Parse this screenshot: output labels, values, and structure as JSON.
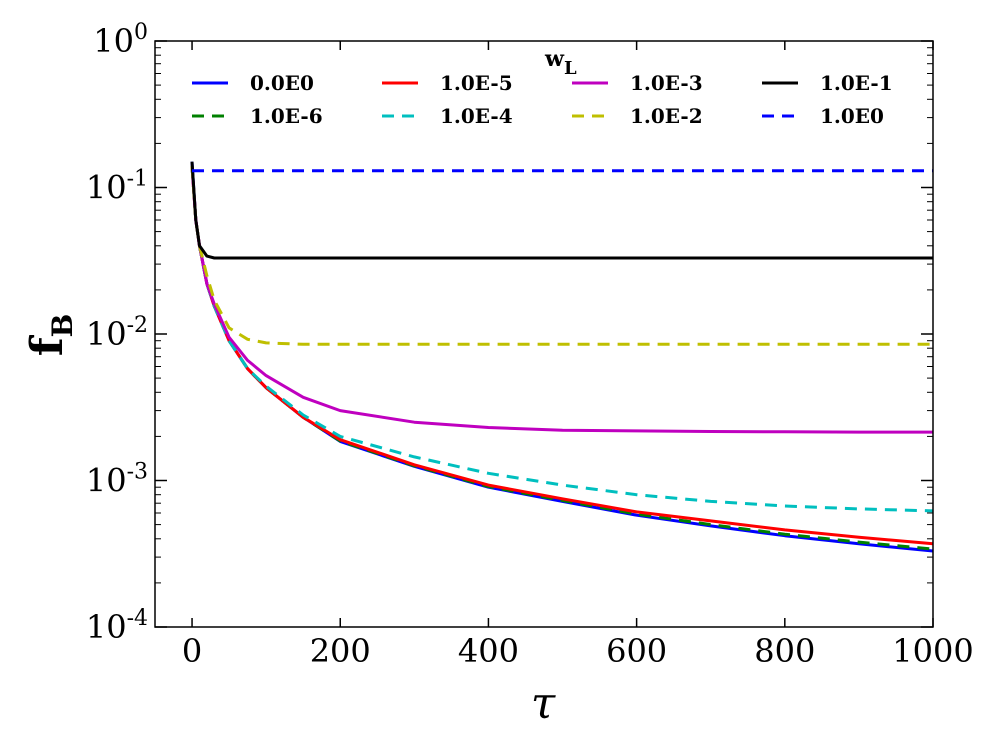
{
  "chart_data": {
    "type": "line",
    "title": "",
    "xlabel": "τ",
    "ylabel": "f",
    "ylabel_sub": "B",
    "yscale": "log",
    "xlim": [
      -50,
      1000
    ],
    "ylim_exp": [
      -4,
      0
    ],
    "xticks": [
      "0",
      "200",
      "400",
      "600",
      "800",
      "1000"
    ],
    "yticks": [
      {
        "base": "10",
        "exp": "0"
      },
      {
        "base": "10",
        "exp": "-1"
      },
      {
        "base": "10",
        "exp": "-2"
      },
      {
        "base": "10",
        "exp": "-3"
      },
      {
        "base": "10",
        "exp": "-4"
      }
    ],
    "legend": {
      "title": "w",
      "title_sub": "L",
      "location": "top",
      "columns": 4
    },
    "x": [
      0,
      5,
      10,
      20,
      30,
      50,
      75,
      100,
      150,
      200,
      300,
      400,
      500,
      600,
      700,
      800,
      900,
      1000
    ],
    "series": [
      {
        "name": "0.0E0",
        "color": "#0000ff",
        "dash": "solid",
        "values": [
          0.15,
          0.06,
          0.04,
          0.022,
          0.0155,
          0.009,
          0.0058,
          0.0043,
          0.0027,
          0.00185,
          0.00125,
          0.0009,
          0.00072,
          0.00058,
          0.00049,
          0.00042,
          0.00037,
          0.00033
        ]
      },
      {
        "name": "1.0E-6",
        "color": "#008000",
        "dash": "dashed",
        "values": [
          0.14,
          0.06,
          0.04,
          0.022,
          0.0155,
          0.009,
          0.0058,
          0.0043,
          0.0027,
          0.00186,
          0.00126,
          0.00091,
          0.00073,
          0.00059,
          0.0005,
          0.00043,
          0.00038,
          0.00034
        ]
      },
      {
        "name": "1.0E-5",
        "color": "#ff0000",
        "dash": "solid",
        "values": [
          0.14,
          0.06,
          0.04,
          0.022,
          0.0155,
          0.009,
          0.0058,
          0.0043,
          0.0027,
          0.0019,
          0.00128,
          0.00093,
          0.00075,
          0.00061,
          0.00053,
          0.00046,
          0.00041,
          0.00037
        ]
      },
      {
        "name": "1.0E-4",
        "color": "#00bfbf",
        "dash": "dashed",
        "values": [
          0.14,
          0.06,
          0.04,
          0.022,
          0.0155,
          0.009,
          0.0058,
          0.0044,
          0.0028,
          0.002,
          0.00145,
          0.00112,
          0.00093,
          0.0008,
          0.00072,
          0.00067,
          0.00064,
          0.00062
        ]
      },
      {
        "name": "1.0E-3",
        "color": "#bf00bf",
        "dash": "solid",
        "values": [
          0.14,
          0.06,
          0.04,
          0.022,
          0.016,
          0.0095,
          0.0066,
          0.0052,
          0.0037,
          0.003,
          0.0025,
          0.0023,
          0.0022,
          0.00218,
          0.00216,
          0.00215,
          0.00214,
          0.00214
        ]
      },
      {
        "name": "1.0E-2",
        "color": "#bfbf00",
        "dash": "dashed",
        "values": [
          0.14,
          0.06,
          0.04,
          0.025,
          0.017,
          0.011,
          0.0092,
          0.0087,
          0.0085,
          0.0085,
          0.0085,
          0.0085,
          0.0085,
          0.0085,
          0.0085,
          0.0085,
          0.0085,
          0.0085
        ]
      },
      {
        "name": "1.0E-1",
        "color": "#000000",
        "dash": "solid",
        "values": [
          0.15,
          0.06,
          0.04,
          0.034,
          0.033,
          0.033,
          0.033,
          0.033,
          0.033,
          0.033,
          0.033,
          0.033,
          0.033,
          0.033,
          0.033,
          0.033,
          0.033,
          0.033
        ]
      },
      {
        "name": "1.0E0",
        "color": "#0000ff",
        "dash": "dashed",
        "values": [
          0.13,
          0.13,
          0.13,
          0.13,
          0.13,
          0.13,
          0.13,
          0.13,
          0.13,
          0.13,
          0.13,
          0.13,
          0.13,
          0.13,
          0.13,
          0.13,
          0.13,
          0.13
        ]
      }
    ]
  }
}
